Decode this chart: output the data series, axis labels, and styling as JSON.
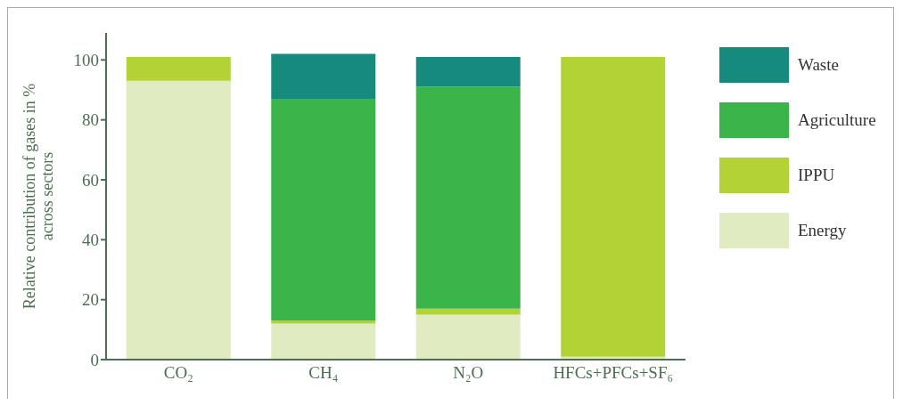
{
  "chart_data": {
    "type": "bar",
    "stacked": true,
    "ylabel": "Relative contribution of gases in % across sectors",
    "categories": [
      "CO₂",
      "CH₄",
      "N₂O",
      "HFCs+PFCs+SF₆"
    ],
    "series": [
      {
        "name": "Energy",
        "color": "#e0ebc2",
        "values": [
          93,
          12,
          15,
          1
        ]
      },
      {
        "name": "IPPU",
        "color": "#b2d235",
        "values": [
          8,
          1,
          2,
          100
        ]
      },
      {
        "name": "Agriculture",
        "color": "#3bb44a",
        "values": [
          0,
          74,
          74,
          0
        ]
      },
      {
        "name": "Waste",
        "color": "#178a7e",
        "values": [
          0,
          15,
          10,
          0
        ]
      }
    ],
    "ylim": [
      0,
      109
    ],
    "yticks": [
      0,
      20,
      40,
      60,
      80,
      100
    ],
    "legend": "right"
  }
}
